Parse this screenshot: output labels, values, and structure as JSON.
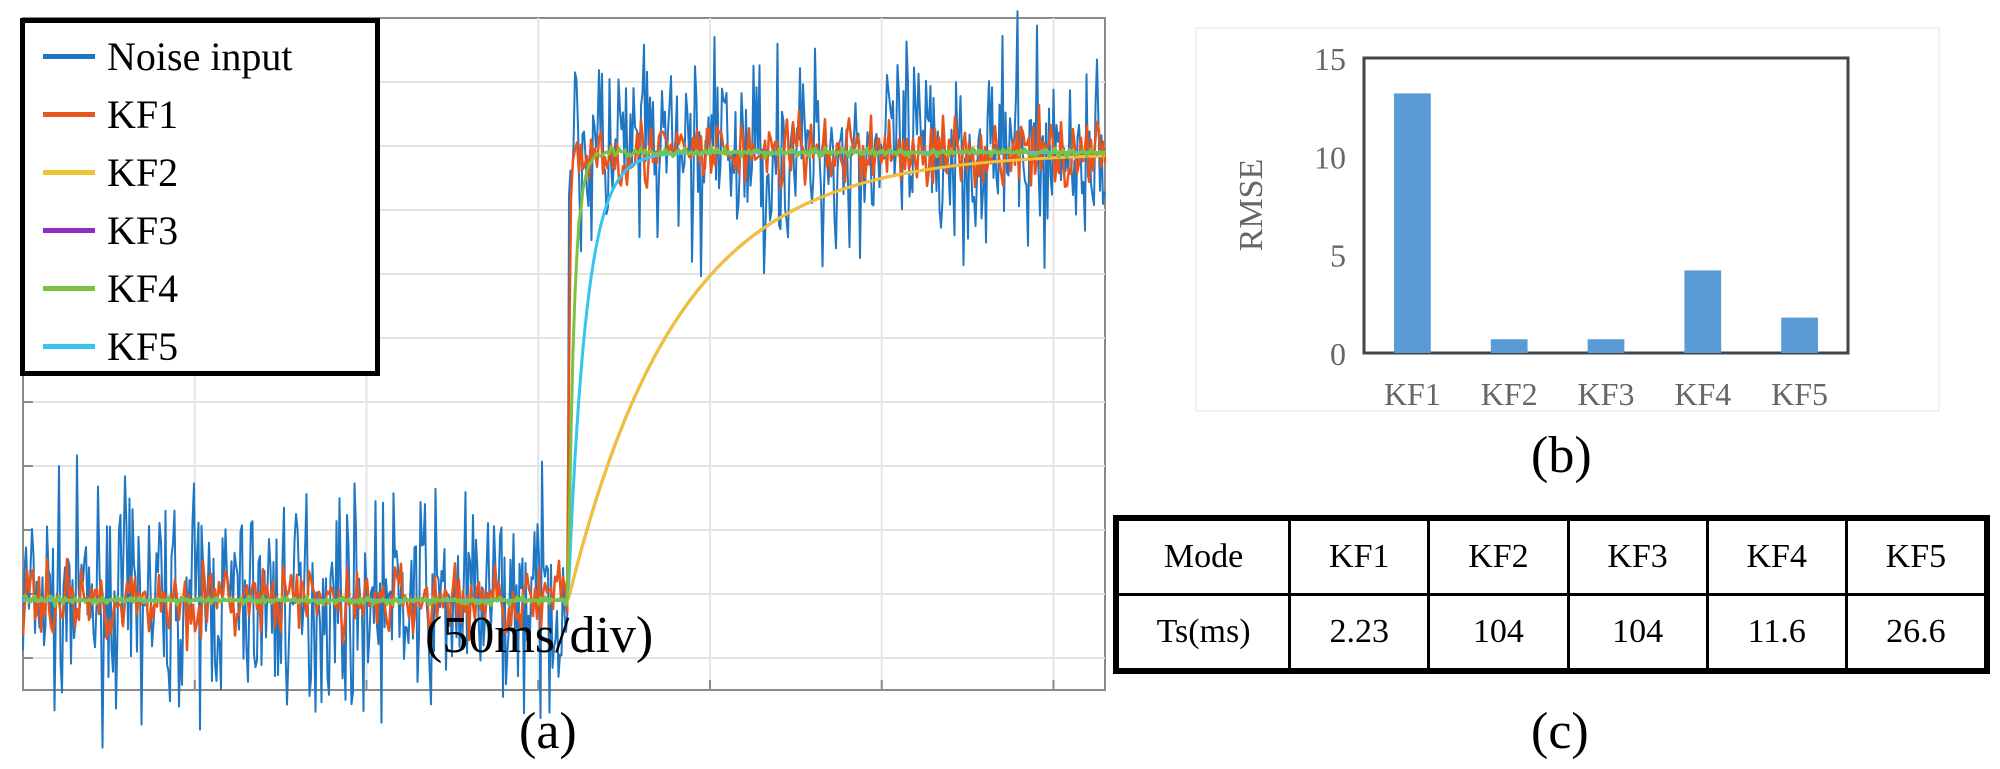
{
  "panel_a": {
    "caption": "(a)",
    "time_scale": "(50ms/div)",
    "legend": [
      {
        "label": "Noise input",
        "color": "#1f77c4"
      },
      {
        "label": "KF1",
        "color": "#e8541c"
      },
      {
        "label": "KF2",
        "color": "#f1c232"
      },
      {
        "label": "KF3",
        "color": "#8e2ec4"
      },
      {
        "label": "KF4",
        "color": "#7cc242"
      },
      {
        "label": "KF5",
        "color": "#37c4f0"
      }
    ]
  },
  "panel_b": {
    "caption": "(b)"
  },
  "panel_c": {
    "caption": "(c)",
    "header": [
      "Mode",
      "KF1",
      "KF2",
      "KF3",
      "KF4",
      "KF5"
    ],
    "row": [
      "Ts(ms)",
      "2.23",
      "104",
      "104",
      "11.6",
      "26.6"
    ]
  },
  "chart_data": [
    {
      "type": "line",
      "title": "",
      "xlabel": "(50ms/div)",
      "ylabel": "",
      "x_divisions": 6.3,
      "step_at_div": 3.0,
      "level_before": 0,
      "level_after": 1,
      "ylim": [
        -0.2,
        1.3
      ],
      "series": [
        {
          "name": "Noise input",
          "noise_amplitude": 0.22
        },
        {
          "name": "KF1",
          "noise_amplitude": 0.08,
          "settle_ms": 2.23
        },
        {
          "name": "KF2",
          "noise_amplitude": 0.0,
          "settle_ms": 104
        },
        {
          "name": "KF3",
          "noise_amplitude": 0.0,
          "settle_ms": 104
        },
        {
          "name": "KF4",
          "noise_amplitude": 0.01,
          "settle_ms": 11.6
        },
        {
          "name": "KF5",
          "noise_amplitude": 0.0,
          "settle_ms": 26.6
        }
      ]
    },
    {
      "type": "bar",
      "title": "",
      "xlabel": "",
      "ylabel": "RMSE",
      "categories": [
        "KF1",
        "KF2",
        "KF3",
        "KF4",
        "KF5"
      ],
      "values": [
        13.2,
        0.7,
        0.7,
        4.2,
        1.8
      ],
      "ylim": [
        0,
        15
      ],
      "yticks": [
        "0",
        "5",
        "10",
        "15"
      ],
      "bar_color": "#5b9bd5"
    }
  ]
}
